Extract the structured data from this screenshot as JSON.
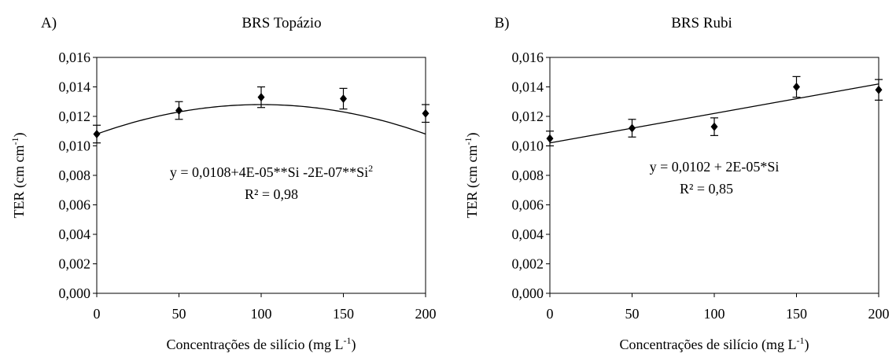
{
  "chart_data": [
    {
      "panel_label": "A)",
      "type": "scatter",
      "title": "BRS Topázio",
      "xlabel": "Concentrações de silício (mg L",
      "xlabel_sup": "-1",
      "xlabel_tail": ")",
      "ylabel": "TER (cm cm",
      "ylabel_sup": "-1",
      "ylabel_tail": ")",
      "xlim": [
        0,
        200
      ],
      "ylim": [
        0,
        0.016
      ],
      "xticks": [
        0,
        50,
        100,
        150,
        200
      ],
      "xtick_labels": [
        "0",
        "50",
        "100",
        "150",
        "200"
      ],
      "yticks": [
        0,
        0.002,
        0.004,
        0.006,
        0.008,
        0.01,
        0.012,
        0.014,
        0.016
      ],
      "ytick_labels": [
        "0,000",
        "0,002",
        "0,004",
        "0,006",
        "0,008",
        "0,010",
        "0,012",
        "0,014",
        "0,016"
      ],
      "grid": false,
      "points": [
        {
          "x": 0,
          "y": 0.0108,
          "err": 0.0006
        },
        {
          "x": 50,
          "y": 0.0124,
          "err": 0.0006
        },
        {
          "x": 100,
          "y": 0.0133,
          "err": 0.0007
        },
        {
          "x": 150,
          "y": 0.0132,
          "err": 0.0007
        },
        {
          "x": 200,
          "y": 0.0122,
          "err": 0.0006
        }
      ],
      "fit": {
        "type": "quadratic",
        "coef": [
          0.0108,
          4e-05,
          -2e-07
        ]
      },
      "equation": "y = 0,0108+4E-05**Si -2E-07**Si",
      "equation_sup": "2",
      "r2": "R² = 0,98"
    },
    {
      "panel_label": "B)",
      "type": "scatter",
      "title": "BRS Rubi",
      "xlabel": "Concentrações de silício (mg L",
      "xlabel_sup": "-1",
      "xlabel_tail": ")",
      "ylabel": "TER (cm cm",
      "ylabel_sup": "-1",
      "ylabel_tail": ")",
      "xlim": [
        0,
        200
      ],
      "ylim": [
        0,
        0.016
      ],
      "xticks": [
        0,
        50,
        100,
        150,
        200
      ],
      "xtick_labels": [
        "0",
        "50",
        "100",
        "150",
        "200"
      ],
      "yticks": [
        0,
        0.002,
        0.004,
        0.006,
        0.008,
        0.01,
        0.012,
        0.014,
        0.016
      ],
      "ytick_labels": [
        "0,000",
        "0,002",
        "0,004",
        "0,006",
        "0,008",
        "0,010",
        "0,012",
        "0,014",
        "0,016"
      ],
      "grid": false,
      "points": [
        {
          "x": 0,
          "y": 0.0105,
          "err": 0.0005
        },
        {
          "x": 50,
          "y": 0.0112,
          "err": 0.0006
        },
        {
          "x": 100,
          "y": 0.0113,
          "err": 0.0006
        },
        {
          "x": 150,
          "y": 0.014,
          "err": 0.0007
        },
        {
          "x": 200,
          "y": 0.0138,
          "err": 0.0007
        }
      ],
      "fit": {
        "type": "linear",
        "coef": [
          0.0102,
          2e-05
        ]
      },
      "equation": "y = 0,0102 + 2E-05*Si",
      "equation_sup": "",
      "r2": "R² = 0,85"
    }
  ]
}
